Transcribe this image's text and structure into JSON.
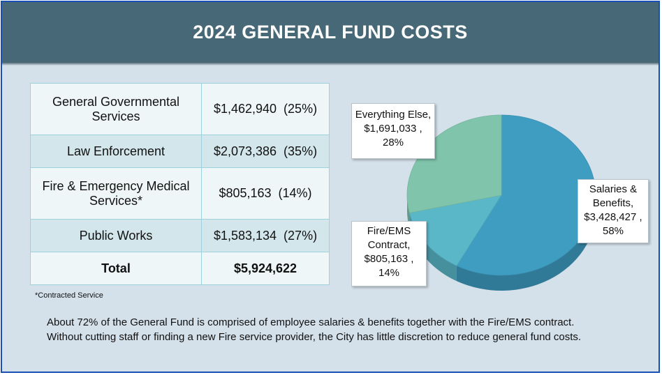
{
  "title": "2024 GENERAL FUND COSTS",
  "table": {
    "rows": [
      {
        "label": "General Governmental Services",
        "value": "$1,462,940",
        "pct": "(25%)"
      },
      {
        "label": "Law Enforcement",
        "value": "$2,073,386",
        "pct": "(35%)"
      },
      {
        "label": "Fire & Emergency Medical Services*",
        "value": "$805,163",
        "pct": "(14%)"
      },
      {
        "label": "Public Works",
        "value": "$1,583,134",
        "pct": "(27%)"
      }
    ],
    "total_label": "Total",
    "total_value": "$5,924,622"
  },
  "footnote": "*Contracted Service",
  "summary": [
    "About 72% of the General Fund is comprised of employee salaries & benefits together with the Fire/EMS contract.",
    "Without cutting staff or finding a new Fire service provider, the City has little discretion to reduce general fund costs."
  ],
  "chart_data": {
    "type": "pie",
    "title": "",
    "slices": [
      {
        "label": "Salaries & Benefits",
        "value": 3428427,
        "percent": 58,
        "value_label": "$3,428,427 ,",
        "percent_label": "58%",
        "color": "#3f9dc2"
      },
      {
        "label": "Fire/EMS Contract",
        "value": 805163,
        "percent": 14,
        "value_label": "$805,163 ,",
        "percent_label": "14%",
        "color": "#5ab7c8"
      },
      {
        "label": "Everything Else",
        "value": 1691033,
        "percent": 28,
        "value_label": "$1,691,033 ,",
        "percent_label": "28%",
        "color": "#7fc4ab"
      }
    ],
    "label_lines": [
      [
        "Salaries &",
        "Benefits,",
        "$3,428,427 ,",
        "58%"
      ],
      [
        "Fire/EMS",
        "Contract,",
        "$805,163 ,",
        "14%"
      ],
      [
        "Everything Else,",
        "$1,691,033 ,",
        "28%"
      ]
    ],
    "legend": "none"
  }
}
